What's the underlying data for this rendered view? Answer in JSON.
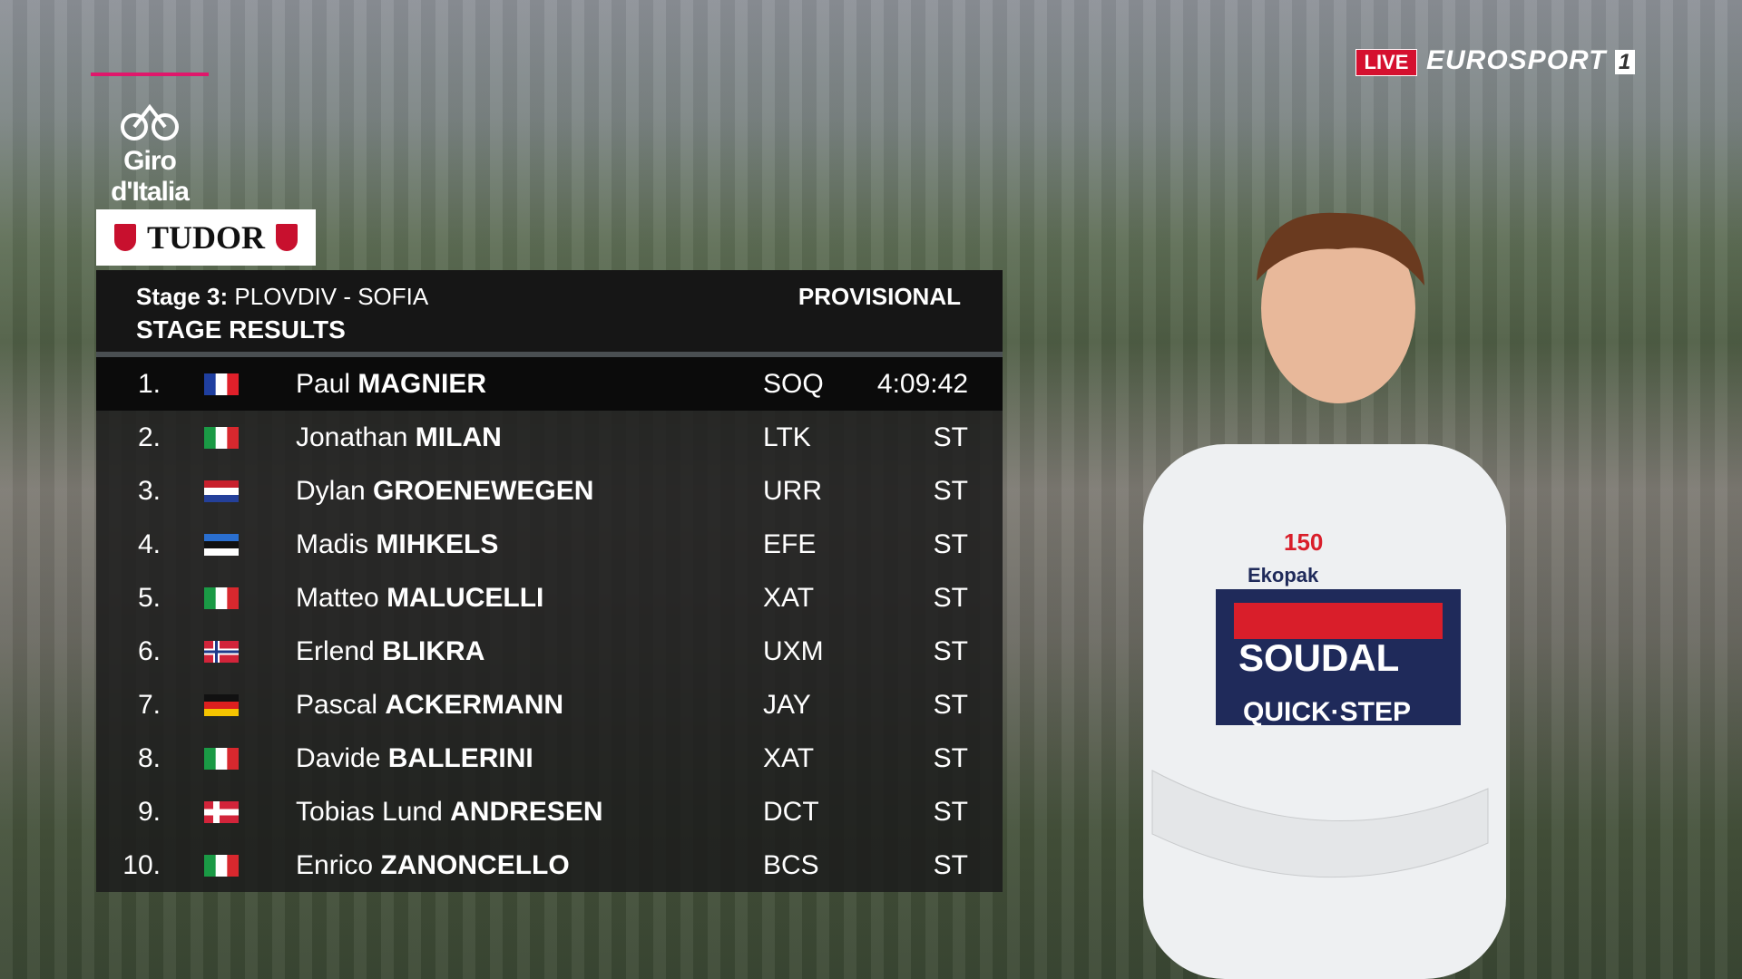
{
  "logos": {
    "giro": "Giro d'Italia",
    "sponsor": "TUDOR",
    "live": "LIVE",
    "channel": "EUROSPORT",
    "channel_number": "1"
  },
  "header": {
    "stage": "Stage 3:",
    "route": "PLOVDIV - SOFIA",
    "status": "PROVISIONAL",
    "title": "STAGE RESULTS"
  },
  "rows": [
    {
      "rank": "1.",
      "flag": {
        "stripes": "vertical",
        "colors": [
          "#1f3fa0",
          "#ffffff",
          "#e0202a"
        ]
      },
      "first_name": "Paul",
      "last_name": "MAGNIER",
      "team": "SOQ",
      "time": "4:09:42"
    },
    {
      "rank": "2.",
      "flag": {
        "stripes": "vertical",
        "colors": [
          "#1a9a45",
          "#ffffff",
          "#d8282e"
        ]
      },
      "first_name": "Jonathan",
      "last_name": "MILAN",
      "team": "LTK",
      "time": "ST"
    },
    {
      "rank": "3.",
      "flag": {
        "stripes": "horizontal",
        "colors": [
          "#c8202c",
          "#ffffff",
          "#24409a"
        ]
      },
      "first_name": "Dylan",
      "last_name": "GROENEWEGEN",
      "team": "URR",
      "time": "ST"
    },
    {
      "rank": "4.",
      "flag": {
        "stripes": "horizontal",
        "colors": [
          "#2a6fd0",
          "#111111",
          "#ffffff"
        ]
      },
      "first_name": "Madis",
      "last_name": "MIHKELS",
      "team": "EFE",
      "time": "ST"
    },
    {
      "rank": "5.",
      "flag": {
        "stripes": "vertical",
        "colors": [
          "#1a9a45",
          "#ffffff",
          "#d8282e"
        ]
      },
      "first_name": "Matteo",
      "last_name": "MALUCELLI",
      "team": "XAT",
      "time": "ST"
    },
    {
      "rank": "6.",
      "flag": {
        "stripes": "cross",
        "colors": [
          "#d2243a",
          "#ffffff",
          "#1f3a8a"
        ]
      },
      "first_name": "Erlend",
      "last_name": "BLIKRA",
      "team": "UXM",
      "time": "ST"
    },
    {
      "rank": "7.",
      "flag": {
        "stripes": "horizontal",
        "colors": [
          "#111111",
          "#dd1f1f",
          "#f5c400"
        ]
      },
      "first_name": "Pascal",
      "last_name": "ACKERMANN",
      "team": "JAY",
      "time": "ST"
    },
    {
      "rank": "8.",
      "flag": {
        "stripes": "vertical",
        "colors": [
          "#1a9a45",
          "#ffffff",
          "#d8282e"
        ]
      },
      "first_name": "Davide",
      "last_name": "BALLERINI",
      "team": "XAT",
      "time": "ST"
    },
    {
      "rank": "9.",
      "flag": {
        "stripes": "cross",
        "colors": [
          "#d2243a",
          "#ffffff",
          "#ffffff"
        ]
      },
      "first_name": "Tobias Lund",
      "last_name": "ANDRESEN",
      "team": "DCT",
      "time": "ST"
    },
    {
      "rank": "10.",
      "flag": {
        "stripes": "vertical",
        "colors": [
          "#1a9a45",
          "#ffffff",
          "#d8282e"
        ]
      },
      "first_name": "Enrico",
      "last_name": "ZANONCELLO",
      "team": "BCS",
      "time": "ST"
    }
  ],
  "rider_jersey": {
    "number_logo": "150",
    "sponsor": "Ekopak",
    "chest": "SOUDAL",
    "chest_sub": "QUICK·STEP"
  }
}
